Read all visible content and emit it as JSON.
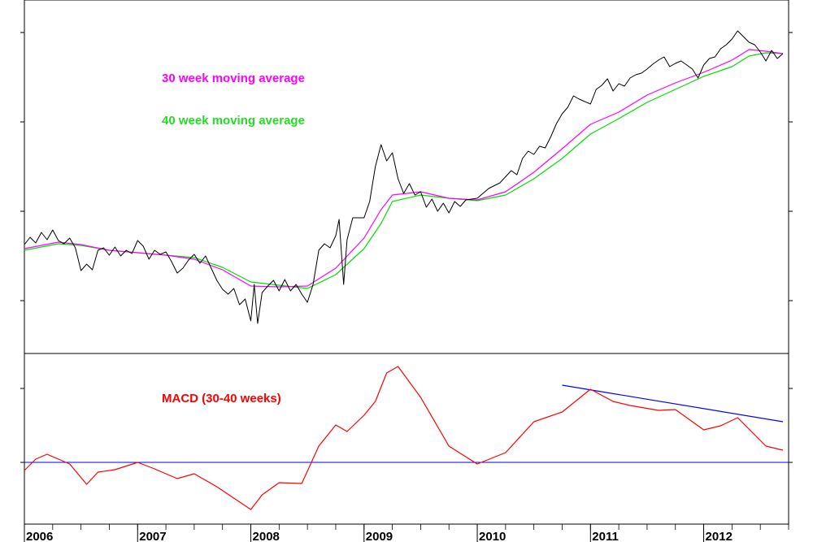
{
  "colors": {
    "price": "#000000",
    "ma30": "#ff00ff",
    "ma40": "#00e000",
    "macd": "#ff0000",
    "zero_line": "#0000ff",
    "trend_line": "#0000ff",
    "frame": "#000000",
    "background": "#ffffff"
  },
  "chart_data": [
    {
      "type": "line",
      "panel": "price",
      "x_axis": "time",
      "series": [
        {
          "name": "30 week moving average",
          "role": "ma30",
          "points": [
            [
              2006.0,
              306
            ],
            [
              2006.3,
              298
            ],
            [
              2006.5,
              301
            ],
            [
              2006.75,
              308
            ],
            [
              2007.0,
              311
            ],
            [
              2007.25,
              314
            ],
            [
              2007.5,
              319
            ],
            [
              2007.75,
              332
            ],
            [
              2008.0,
              352
            ],
            [
              2008.25,
              353
            ],
            [
              2008.5,
              352
            ],
            [
              2008.75,
              330
            ],
            [
              2009.0,
              293
            ],
            [
              2009.15,
              258
            ],
            [
              2009.25,
              240
            ],
            [
              2009.5,
              236
            ],
            [
              2009.75,
              244
            ],
            [
              2010.0,
              246
            ],
            [
              2010.25,
              236
            ],
            [
              2010.5,
              212
            ],
            [
              2010.75,
              183
            ],
            [
              2011.0,
              153
            ],
            [
              2011.25,
              138
            ],
            [
              2011.5,
              117
            ],
            [
              2011.75,
              102
            ],
            [
              2012.0,
              89
            ],
            [
              2012.25,
              74
            ],
            [
              2012.4,
              61
            ],
            [
              2012.55,
              63
            ],
            [
              2012.7,
              66
            ]
          ]
        },
        {
          "name": "40 week moving average",
          "role": "ma40",
          "points": [
            [
              2006.0,
              308
            ],
            [
              2006.3,
              300
            ],
            [
              2006.5,
              302
            ],
            [
              2006.75,
              308
            ],
            [
              2007.0,
              311
            ],
            [
              2007.25,
              314
            ],
            [
              2007.5,
              317
            ],
            [
              2007.75,
              329
            ],
            [
              2008.0,
              347
            ],
            [
              2008.25,
              351
            ],
            [
              2008.5,
              355
            ],
            [
              2008.75,
              338
            ],
            [
              2009.0,
              306
            ],
            [
              2009.15,
              275
            ],
            [
              2009.25,
              248
            ],
            [
              2009.5,
              240
            ],
            [
              2009.75,
              244
            ],
            [
              2010.0,
              247
            ],
            [
              2010.25,
              240
            ],
            [
              2010.5,
              220
            ],
            [
              2010.75,
              195
            ],
            [
              2011.0,
              165
            ],
            [
              2011.25,
              146
            ],
            [
              2011.5,
              126
            ],
            [
              2011.75,
              110
            ],
            [
              2012.0,
              94
            ],
            [
              2012.25,
              82
            ],
            [
              2012.4,
              69
            ],
            [
              2012.55,
              65
            ],
            [
              2012.7,
              66
            ]
          ]
        },
        {
          "name": "",
          "role": "price",
          "points": [
            [
              2006.0,
              301
            ],
            [
              2006.05,
              292
            ],
            [
              2006.1,
              299
            ],
            [
              2006.15,
              286
            ],
            [
              2006.2,
              295
            ],
            [
              2006.25,
              283
            ],
            [
              2006.3,
              296
            ],
            [
              2006.35,
              300
            ],
            [
              2006.4,
              293
            ],
            [
              2006.45,
              305
            ],
            [
              2006.5,
              333
            ],
            [
              2006.55,
              325
            ],
            [
              2006.6,
              332
            ],
            [
              2006.65,
              308
            ],
            [
              2006.7,
              305
            ],
            [
              2006.75,
              314
            ],
            [
              2006.8,
              304
            ],
            [
              2006.85,
              315
            ],
            [
              2006.9,
              308
            ],
            [
              2006.95,
              312
            ],
            [
              2007.0,
              296
            ],
            [
              2007.05,
              303
            ],
            [
              2007.1,
              319
            ],
            [
              2007.15,
              308
            ],
            [
              2007.2,
              313
            ],
            [
              2007.25,
              310
            ],
            [
              2007.3,
              322
            ],
            [
              2007.35,
              336
            ],
            [
              2007.4,
              330
            ],
            [
              2007.45,
              320
            ],
            [
              2007.5,
              313
            ],
            [
              2007.55,
              324
            ],
            [
              2007.6,
              315
            ],
            [
              2007.65,
              330
            ],
            [
              2007.7,
              345
            ],
            [
              2007.75,
              356
            ],
            [
              2007.8,
              362
            ],
            [
              2007.85,
              355
            ],
            [
              2007.9,
              375
            ],
            [
              2007.95,
              368
            ],
            [
              2008.0,
              395
            ],
            [
              2008.03,
              350
            ],
            [
              2008.06,
              398
            ],
            [
              2008.1,
              360
            ],
            [
              2008.15,
              352
            ],
            [
              2008.2,
              345
            ],
            [
              2008.25,
              358
            ],
            [
              2008.3,
              344
            ],
            [
              2008.35,
              358
            ],
            [
              2008.4,
              350
            ],
            [
              2008.45,
              362
            ],
            [
              2008.5,
              372
            ],
            [
              2008.55,
              350
            ],
            [
              2008.6,
              308
            ],
            [
              2008.65,
              300
            ],
            [
              2008.7,
              305
            ],
            [
              2008.75,
              290
            ],
            [
              2008.78,
              270
            ],
            [
              2008.82,
              350
            ],
            [
              2008.85,
              295
            ],
            [
              2008.9,
              268
            ],
            [
              2009.0,
              268
            ],
            [
              2009.05,
              248
            ],
            [
              2009.1,
              205
            ],
            [
              2009.15,
              178
            ],
            [
              2009.2,
              198
            ],
            [
              2009.25,
              188
            ],
            [
              2009.3,
              220
            ],
            [
              2009.35,
              238
            ],
            [
              2009.4,
              226
            ],
            [
              2009.45,
              240
            ],
            [
              2009.5,
              236
            ],
            [
              2009.55,
              255
            ],
            [
              2009.6,
              245
            ],
            [
              2009.65,
              260
            ],
            [
              2009.7,
              250
            ],
            [
              2009.75,
              262
            ],
            [
              2009.8,
              248
            ],
            [
              2009.85,
              254
            ],
            [
              2009.9,
              246
            ],
            [
              2010.0,
              244
            ],
            [
              2010.1,
              232
            ],
            [
              2010.2,
              225
            ],
            [
              2010.3,
              210
            ],
            [
              2010.35,
              215
            ],
            [
              2010.4,
              195
            ],
            [
              2010.45,
              186
            ],
            [
              2010.5,
              190
            ],
            [
              2010.55,
              180
            ],
            [
              2010.6,
              182
            ],
            [
              2010.65,
              168
            ],
            [
              2010.7,
              152
            ],
            [
              2010.75,
              140
            ],
            [
              2010.8,
              132
            ],
            [
              2010.85,
              118
            ],
            [
              2010.9,
              122
            ],
            [
              2011.0,
              128
            ],
            [
              2011.05,
              110
            ],
            [
              2011.1,
              105
            ],
            [
              2011.15,
              97
            ],
            [
              2011.2,
              112
            ],
            [
              2011.25,
              103
            ],
            [
              2011.3,
              106
            ],
            [
              2011.35,
              96
            ],
            [
              2011.4,
              92
            ],
            [
              2011.45,
              90
            ],
            [
              2011.5,
              85
            ],
            [
              2011.55,
              79
            ],
            [
              2011.6,
              74
            ],
            [
              2011.65,
              70
            ],
            [
              2011.7,
              82
            ],
            [
              2011.75,
              78
            ],
            [
              2011.8,
              75
            ],
            [
              2011.85,
              80
            ],
            [
              2011.9,
              85
            ],
            [
              2011.95,
              96
            ],
            [
              2012.0,
              80
            ],
            [
              2012.05,
              72
            ],
            [
              2012.1,
              70
            ],
            [
              2012.15,
              60
            ],
            [
              2012.2,
              55
            ],
            [
              2012.25,
              48
            ],
            [
              2012.3,
              38
            ],
            [
              2012.35,
              45
            ],
            [
              2012.4,
              52
            ],
            [
              2012.45,
              55
            ],
            [
              2012.5,
              64
            ],
            [
              2012.55,
              75
            ],
            [
              2012.6,
              62
            ],
            [
              2012.65,
              72
            ],
            [
              2012.7,
              66
            ]
          ]
        }
      ],
      "legend": [
        {
          "label": "30 week moving average",
          "role": "ma30"
        },
        {
          "label": "40 week moving average",
          "role": "ma40"
        }
      ]
    },
    {
      "type": "line",
      "panel": "oscillator",
      "title": "MACD (30-40 weeks)",
      "series": [
        {
          "name": "MACD (30-40 weeks)",
          "role": "macd",
          "points": [
            [
              2006.0,
              -10
            ],
            [
              2006.1,
              4
            ],
            [
              2006.2,
              10
            ],
            [
              2006.3,
              4
            ],
            [
              2006.4,
              -2
            ],
            [
              2006.55,
              -27
            ],
            [
              2006.65,
              -12
            ],
            [
              2006.8,
              -9
            ],
            [
              2007.0,
              0
            ],
            [
              2007.15,
              -8
            ],
            [
              2007.35,
              -20
            ],
            [
              2007.5,
              -14
            ],
            [
              2007.7,
              -30
            ],
            [
              2008.0,
              -58
            ],
            [
              2008.1,
              -40
            ],
            [
              2008.25,
              -25
            ],
            [
              2008.45,
              -26
            ],
            [
              2008.6,
              20
            ],
            [
              2008.75,
              46
            ],
            [
              2008.85,
              38
            ],
            [
              2009.0,
              58
            ],
            [
              2009.1,
              75
            ],
            [
              2009.2,
              110
            ],
            [
              2009.3,
              118
            ],
            [
              2009.5,
              80
            ],
            [
              2009.75,
              20
            ],
            [
              2010.0,
              -2
            ],
            [
              2010.25,
              12
            ],
            [
              2010.5,
              50
            ],
            [
              2010.75,
              62
            ],
            [
              2011.0,
              90
            ],
            [
              2011.2,
              75
            ],
            [
              2011.35,
              70
            ],
            [
              2011.6,
              64
            ],
            [
              2011.75,
              65
            ],
            [
              2012.0,
              40
            ],
            [
              2012.15,
              45
            ],
            [
              2012.3,
              55
            ],
            [
              2012.55,
              20
            ],
            [
              2012.7,
              15
            ]
          ]
        }
      ],
      "reference_lines": [
        {
          "type": "zero",
          "value": 0
        },
        {
          "type": "trend",
          "from": [
            2010.75,
            95
          ],
          "to": [
            2012.7,
            50
          ]
        }
      ]
    }
  ],
  "x_axis": {
    "tick_labels": [
      "2006",
      "2007",
      "2008",
      "2009",
      "2010",
      "2011",
      "2012"
    ]
  }
}
